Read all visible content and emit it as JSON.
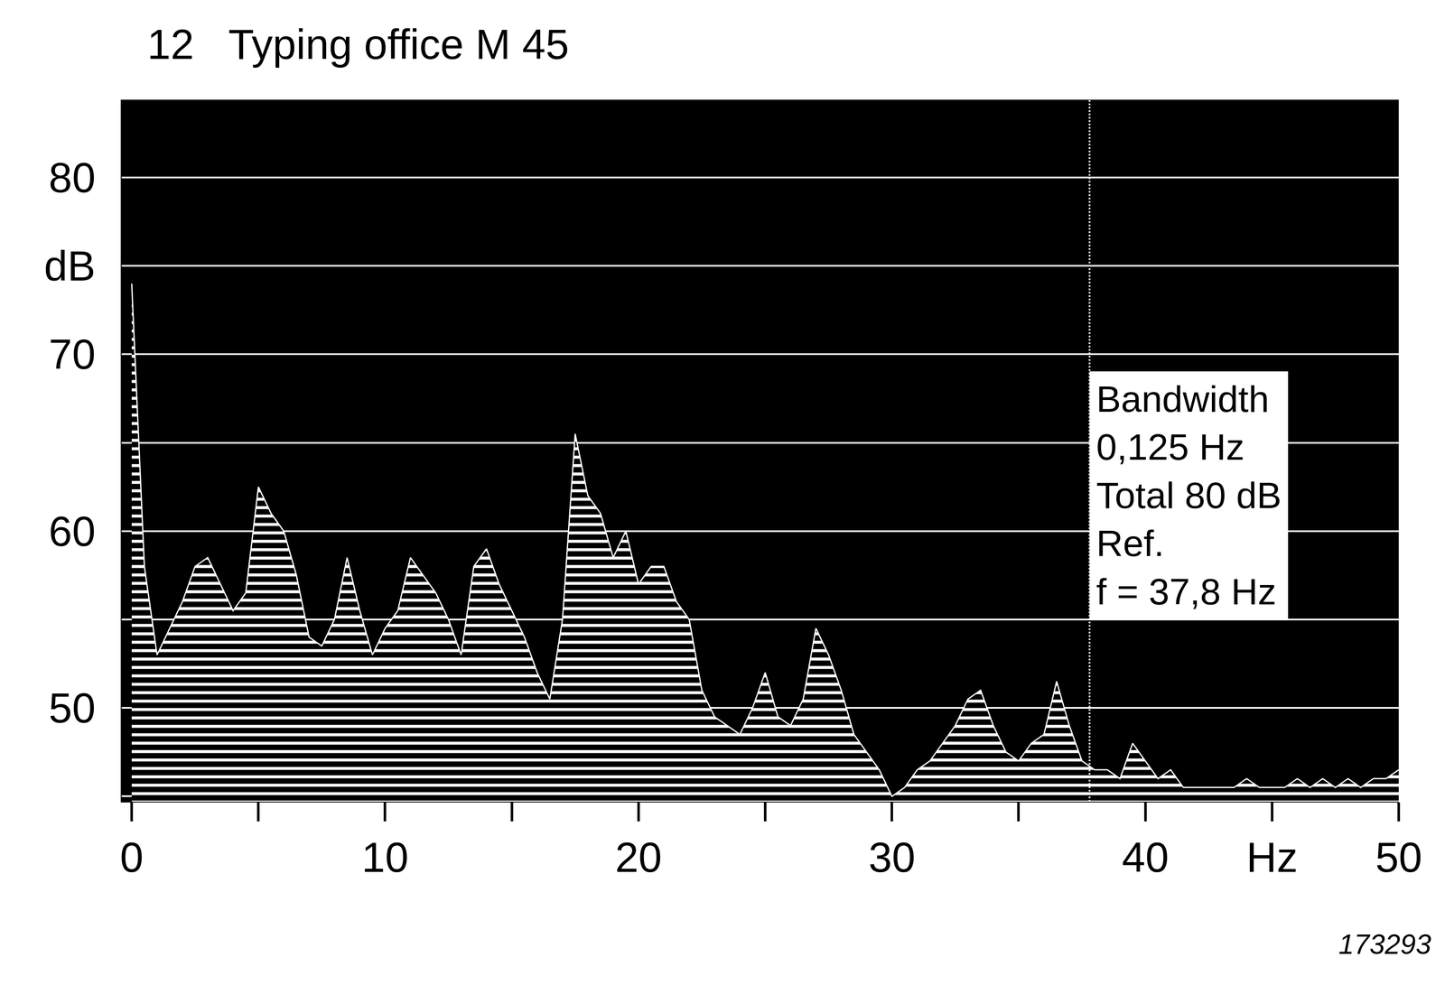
{
  "chart_data": {
    "type": "area",
    "title": "12   Typing office M 45",
    "x": [
      0,
      0.5,
      1,
      1.5,
      2,
      2.5,
      3,
      3.5,
      4,
      4.5,
      5,
      5.5,
      6,
      6.5,
      7,
      7.5,
      8,
      8.5,
      9,
      9.5,
      10,
      10.5,
      11,
      11.5,
      12,
      12.5,
      13,
      13.5,
      14,
      14.5,
      15,
      15.5,
      16,
      16.5,
      17,
      17.5,
      18,
      18.5,
      19,
      19.5,
      20,
      20.5,
      21,
      21.5,
      22,
      22.5,
      23,
      23.5,
      24,
      24.5,
      25,
      25.5,
      26,
      26.5,
      27,
      27.5,
      28,
      28.5,
      29,
      29.5,
      30,
      30.5,
      31,
      31.5,
      32,
      32.5,
      33,
      33.5,
      34,
      34.5,
      35,
      35.5,
      36,
      36.5,
      37,
      37.5,
      38,
      38.5,
      39,
      39.5,
      40,
      40.5,
      41,
      41.5,
      42,
      42.5,
      43,
      43.5,
      44,
      44.5,
      45,
      45.5,
      46,
      46.5,
      47,
      47.5,
      48,
      48.5,
      49,
      49.5,
      50
    ],
    "values": [
      74,
      58,
      53,
      54.5,
      56,
      58,
      58.5,
      57,
      55.5,
      56.5,
      62.5,
      61,
      60,
      57.5,
      54,
      53.5,
      55,
      58.5,
      55.5,
      53,
      54.5,
      55.5,
      58.5,
      57.5,
      56.5,
      55,
      53,
      58,
      59,
      57,
      55.5,
      54,
      52,
      50.5,
      55,
      65.5,
      62,
      61,
      58.5,
      60,
      57,
      58,
      58,
      56,
      55,
      51,
      49.5,
      49,
      48.5,
      50,
      52,
      49.5,
      49,
      50.5,
      54.5,
      53,
      51,
      48.5,
      47.5,
      46.5,
      45,
      45.5,
      46.5,
      47,
      48,
      49,
      50.5,
      51,
      49,
      47.5,
      47,
      48,
      48.5,
      51.5,
      49,
      47,
      46.5,
      46.5,
      46,
      48,
      47,
      46,
      46.5,
      45.5,
      45.5,
      45.5,
      45.5,
      45.5,
      46,
      45.5,
      45.5,
      45.5,
      46,
      45.5,
      46,
      45.5,
      46,
      45.5,
      46,
      46,
      46.5
    ],
    "color": "#ffffff",
    "xlim": [
      -0.4,
      50
    ],
    "ylim": [
      44.7,
      84.4
    ],
    "xticks": [
      0,
      10,
      20,
      30,
      40,
      {
        "value": 45,
        "label": "Hz"
      },
      50
    ],
    "yticks": [
      50,
      60,
      70,
      {
        "value": 75,
        "label": "dB"
      },
      80
    ],
    "grid": true,
    "reference_frequency": 37.8,
    "info_box": [
      "Bandwidth",
      "0,125 Hz",
      "Total 80 dB",
      "Ref.",
      "f = 37,8 Hz"
    ],
    "footnote": "173293"
  }
}
